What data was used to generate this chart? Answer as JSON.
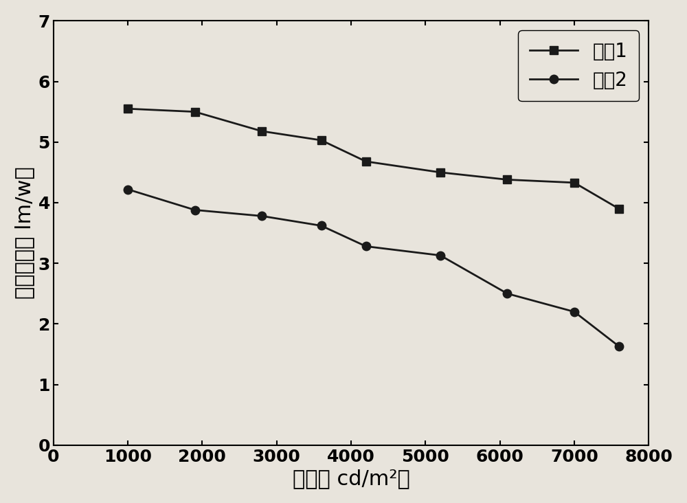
{
  "curve1_x": [
    1000,
    1900,
    2800,
    3600,
    4200,
    5200,
    6100,
    7000,
    7600
  ],
  "curve1_y": [
    5.55,
    5.5,
    5.18,
    5.03,
    4.68,
    4.5,
    4.38,
    4.33,
    3.9
  ],
  "curve2_x": [
    1000,
    1900,
    2800,
    3600,
    4200,
    5200,
    6100,
    7000,
    7600
  ],
  "curve2_y": [
    4.22,
    3.88,
    3.78,
    3.62,
    3.28,
    3.13,
    2.5,
    2.2,
    1.63
  ],
  "xlabel": "亮度（ cd/m²）",
  "ylabel": "流明效率（ lm/w）",
  "legend1": "曲煳1",
  "legend2": "曲煳2",
  "xlim": [
    0,
    8000
  ],
  "ylim": [
    0,
    7
  ],
  "xticks": [
    0,
    1000,
    2000,
    3000,
    4000,
    5000,
    6000,
    7000,
    8000
  ],
  "yticks": [
    0,
    1,
    2,
    3,
    4,
    5,
    6,
    7
  ],
  "bg_color": "#e8e4dc",
  "line_color": "#1a1a1a",
  "marker_square": "s",
  "marker_circle": "o",
  "markersize": 9,
  "linewidth": 2.0,
  "xlabel_fontsize": 22,
  "ylabel_fontsize": 22,
  "tick_fontsize": 18,
  "legend_fontsize": 20
}
